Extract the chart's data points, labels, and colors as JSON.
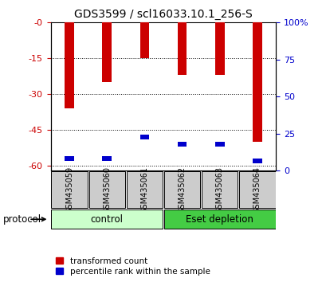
{
  "title": "GDS3599 / scl16033.10.1_256-S",
  "samples": [
    "GSM435059",
    "GSM435060",
    "GSM435061",
    "GSM435062",
    "GSM435063",
    "GSM435064"
  ],
  "red_bar_tops": [
    0,
    0,
    0,
    0,
    0,
    0
  ],
  "red_bar_bottoms": [
    -36,
    -25,
    -15,
    -22,
    -22,
    -50
  ],
  "blue_bar_bottoms": [
    -58,
    -58,
    -49,
    -52,
    -52,
    -59
  ],
  "blue_bar_height": 2,
  "ylim_left": [
    -62,
    0
  ],
  "ylim_right": [
    0,
    100
  ],
  "left_ticks": [
    0,
    -15,
    -30,
    -45,
    -60
  ],
  "right_ticks": [
    0,
    25,
    50,
    75,
    100
  ],
  "left_tick_labels": [
    "-0",
    "-15",
    "-30",
    "-45",
    "-60"
  ],
  "right_tick_labels": [
    "0",
    "25",
    "50",
    "75",
    "100%"
  ],
  "bar_width": 0.25,
  "bar_color_red": "#cc0000",
  "bar_color_blue": "#0000cc",
  "groups": [
    {
      "label": "control",
      "indices": [
        0,
        1,
        2
      ],
      "color": "#ccffcc"
    },
    {
      "label": "Eset depletion",
      "indices": [
        3,
        4,
        5
      ],
      "color": "#44cc44"
    }
  ],
  "protocol_label": "protocol",
  "legend_red": "transformed count",
  "legend_blue": "percentile rank within the sample",
  "sample_box_color": "#cccccc",
  "axis_left_color": "#cc0000",
  "axis_right_color": "#0000cc",
  "title_fontsize": 10,
  "tick_fontsize": 8,
  "bg_color": "#ffffff"
}
